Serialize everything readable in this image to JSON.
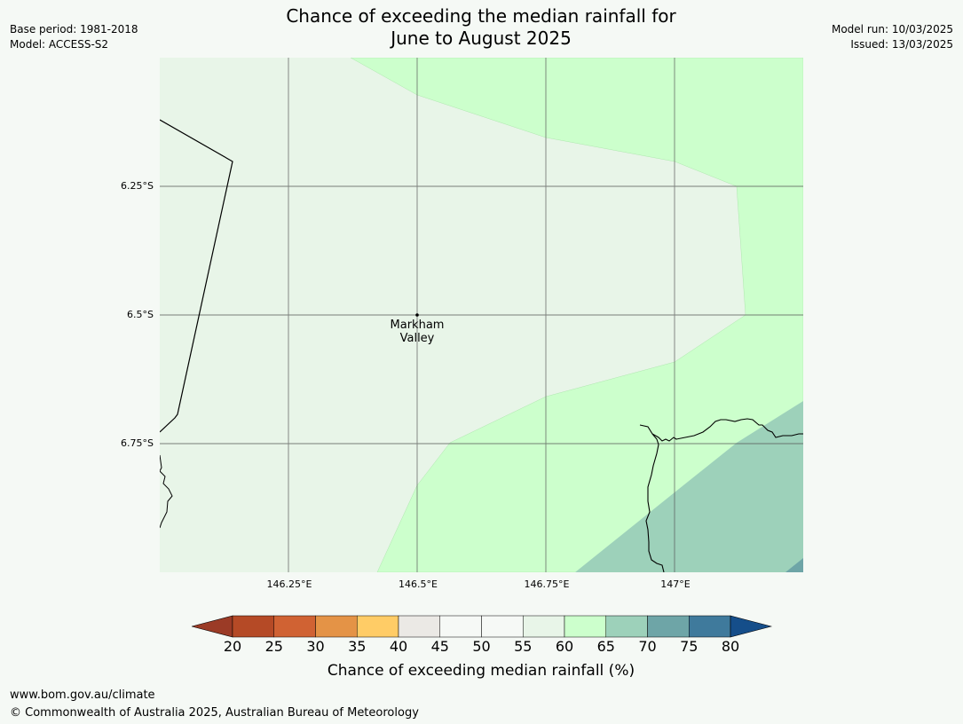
{
  "title": {
    "line1": "Chance of exceeding the median rainfall for",
    "line2": "June to August 2025"
  },
  "meta_left": {
    "base_period": "Base period: 1981-2018",
    "model": "Model: ACCESS-S2"
  },
  "meta_right": {
    "model_run": "Model run: 10/03/2025",
    "issued": "Issued: 13/03/2025"
  },
  "map": {
    "lat_labels": [
      "6.25°S",
      "6.5°S",
      "6.75°S"
    ],
    "lon_labels": [
      "146.25°E",
      "146.5°E",
      "146.75°E",
      "147°E"
    ],
    "place": {
      "line1": "Markham",
      "line2": "Valley"
    },
    "zone_colors": {
      "c55_60": "#e8f5e8",
      "c60_65": "#ccffcc",
      "c65_70": "#9dd1ba"
    }
  },
  "colorbar": {
    "ticks": [
      "20",
      "25",
      "30",
      "35",
      "40",
      "45",
      "50",
      "55",
      "60",
      "65",
      "70",
      "75",
      "80"
    ],
    "label": "Chance of exceeding median rainfall (%)",
    "colors": {
      "under20": "#9b3b26",
      "c20_25": "#b54a26",
      "c25_30": "#d06233",
      "c30_35": "#e49346",
      "c35_40": "#ffcc66",
      "c40_45": "#ebe9e5",
      "c45_50": "#f6f9f6",
      "c50_55": "#f6f9f6",
      "c55_60": "#e8f5e8",
      "c60_65": "#ccffcc",
      "c65_70": "#9dd1ba",
      "c70_75": "#6ea5a7",
      "c75_80": "#3f7a9c",
      "over80": "#154e8a"
    }
  },
  "footer": {
    "url": "www.bom.gov.au/climate",
    "copyright": "© Commonwealth of Australia 2025, Australian Bureau of Meteorology"
  }
}
